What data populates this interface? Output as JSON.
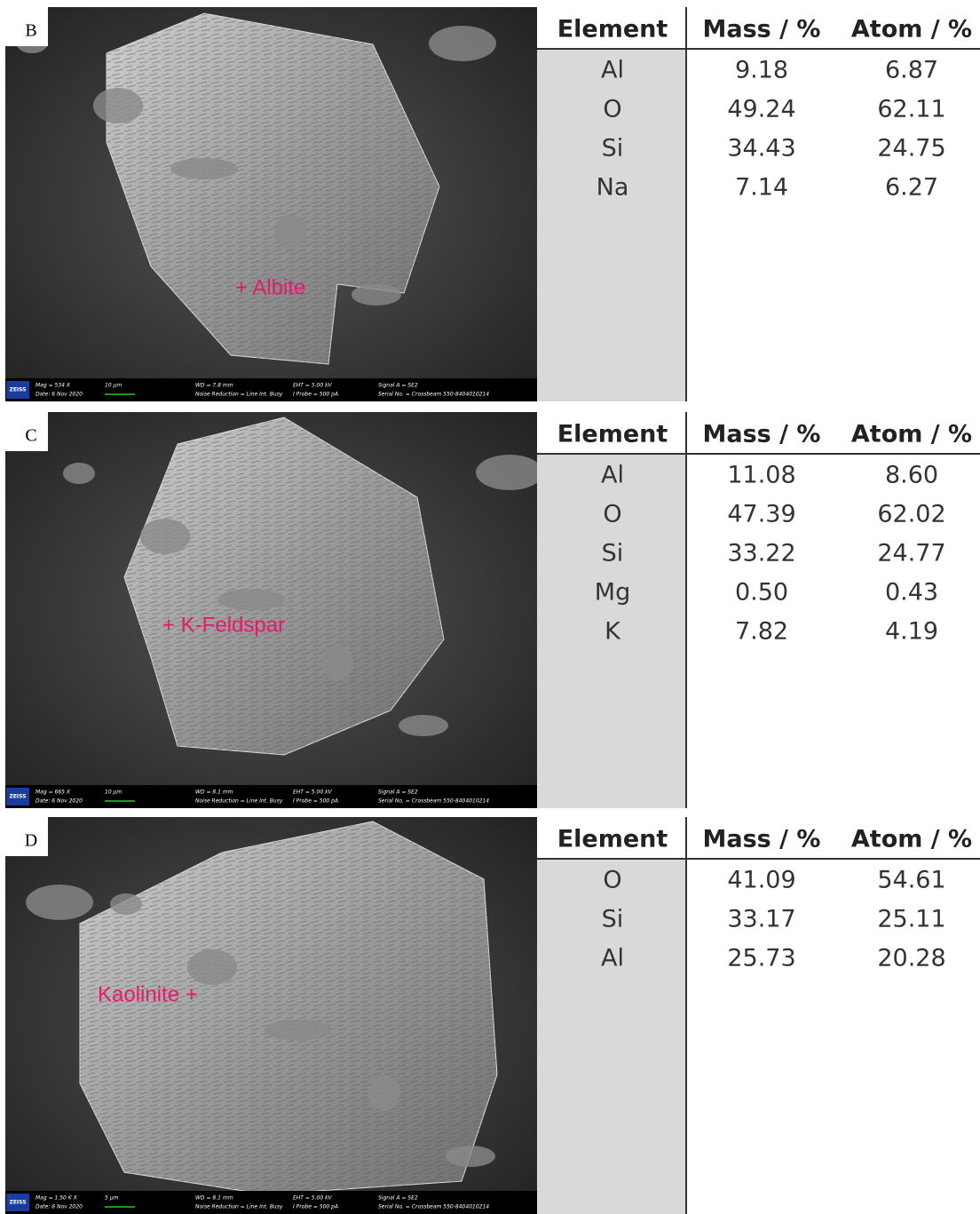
{
  "panels": [
    {
      "label": "B",
      "annotation": "+ Albite",
      "info": {
        "logo": "ZEISS",
        "cells": [
          [
            "Mag = 534 X",
            "Date: 6 Nov 2020"
          ],
          [
            "10 µm"
          ],
          [
            "WD = 7.8 mm",
            "Noise Reduction = Line Int. Busy"
          ],
          [
            "EHT = 5.00 kV",
            "I Probe = 500 pA"
          ],
          [
            "Signal A = SE2",
            "Serial No. = Crossbeam 550-8404010214"
          ]
        ]
      },
      "table": {
        "header": [
          "Element",
          "Mass / %",
          "Atom / %"
        ],
        "rows": [
          [
            "Al",
            "9.18",
            "6.87"
          ],
          [
            "O",
            "49.24",
            "62.11"
          ],
          [
            "Si",
            "34.43",
            "24.75"
          ],
          [
            "Na",
            "7.14",
            "6.27"
          ]
        ]
      }
    },
    {
      "label": "C",
      "annotation": "+ K-Feldspar",
      "info": {
        "logo": "ZEISS",
        "cells": [
          [
            "Mag = 665 X",
            "Date: 6 Nov 2020"
          ],
          [
            "10 µm"
          ],
          [
            "WD = 8.1 mm",
            "Noise Reduction = Line Int. Busy"
          ],
          [
            "EHT = 5.00 kV",
            "I Probe = 500 pA"
          ],
          [
            "Signal A = SE2",
            "Serial No. = Crossbeam 550-8404010214"
          ]
        ]
      },
      "table": {
        "header": [
          "Element",
          "Mass / %",
          "Atom / %"
        ],
        "rows": [
          [
            "Al",
            "11.08",
            "8.60"
          ],
          [
            "O",
            "47.39",
            "62.02"
          ],
          [
            "Si",
            "33.22",
            "24.77"
          ],
          [
            "Mg",
            "0.50",
            "0.43"
          ],
          [
            "K",
            "7.82",
            "4.19"
          ]
        ]
      }
    },
    {
      "label": "D",
      "annotation": "Kaolinite +",
      "info": {
        "logo": "ZEISS",
        "cells": [
          [
            "Mag = 1.50 K X",
            "Date: 6 Nov 2020"
          ],
          [
            "5 µm"
          ],
          [
            "WD = 8.1 mm",
            "Noise Reduction = Line Int. Busy"
          ],
          [
            "EHT = 5.00 kV",
            "I Probe = 500 pA"
          ],
          [
            "Signal A = SE2",
            "Serial No. = Crossbeam 550-8404010214"
          ]
        ]
      },
      "table": {
        "header": [
          "Element",
          "Mass / %",
          "Atom / %"
        ],
        "rows": [
          [
            "O",
            "41.09",
            "54.61"
          ],
          [
            "Si",
            "33.17",
            "25.11"
          ],
          [
            "Al",
            "25.73",
            "20.28"
          ]
        ]
      }
    }
  ]
}
